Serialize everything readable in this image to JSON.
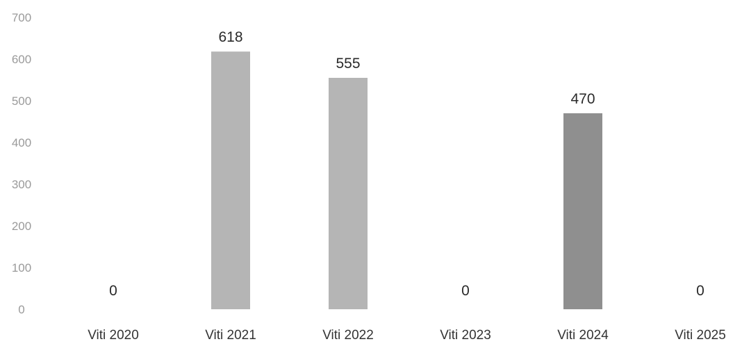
{
  "chart_data": {
    "type": "bar",
    "categories": [
      "Viti 2020",
      "Viti 2021",
      "Viti 2022",
      "Viti 2023",
      "Viti 2024",
      "Viti 2025"
    ],
    "values": [
      0,
      618,
      555,
      0,
      470,
      0
    ],
    "data_labels": [
      "0",
      "618",
      "555",
      "0",
      "470",
      "0"
    ],
    "yticks": [
      0,
      100,
      200,
      300,
      400,
      500,
      600,
      700
    ],
    "ylim": [
      0,
      700
    ],
    "grid": false,
    "legend": "none",
    "colors": {
      "bars": [
        "#b5b5b5",
        "#b5b5b5",
        "#b5b5b5",
        "#b5b5b5",
        "#8f8f8f",
        "#b5b5b5"
      ],
      "tick_text": "#9a9a9a",
      "category_text": "#333333",
      "label_text": "#2a2a2a"
    }
  }
}
